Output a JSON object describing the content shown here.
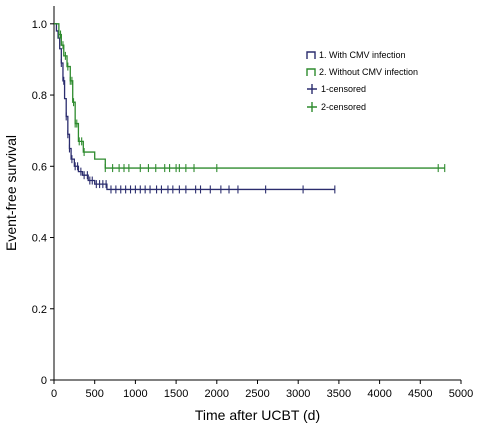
{
  "chart_data": {
    "type": "line",
    "subtype": "kaplan-meier",
    "xlabel": "Time after UCBT (d)",
    "ylabel": "Event-free survival",
    "xlim": [
      0,
      5000
    ],
    "ylim": [
      0,
      1.05
    ],
    "x_ticks": [
      "0",
      "500",
      "1000",
      "1500",
      "2000",
      "2500",
      "3000",
      "3500",
      "4000",
      "4500",
      "5000"
    ],
    "y_ticks": [
      "0",
      "0.2",
      "0.4",
      "0.6",
      "0.8",
      "1.0"
    ],
    "legend_position": "top-right",
    "series": [
      {
        "name": "1. With CMV infection",
        "censor_name": "1-censored",
        "color": "#2b2d6e",
        "steps": [
          [
            0,
            1.0
          ],
          [
            30,
            0.98
          ],
          [
            50,
            0.96
          ],
          [
            70,
            0.93
          ],
          [
            90,
            0.89
          ],
          [
            110,
            0.84
          ],
          [
            130,
            0.79
          ],
          [
            150,
            0.74
          ],
          [
            170,
            0.69
          ],
          [
            190,
            0.65
          ],
          [
            210,
            0.62
          ],
          [
            250,
            0.6
          ],
          [
            300,
            0.585
          ],
          [
            350,
            0.575
          ],
          [
            420,
            0.56
          ],
          [
            500,
            0.55
          ],
          [
            650,
            0.535
          ],
          [
            3450,
            0.535
          ]
        ],
        "censored": [
          90,
          120,
          150,
          170,
          190,
          220,
          260,
          290,
          330,
          370,
          410,
          440,
          470,
          520,
          560,
          600,
          640,
          700,
          760,
          820,
          880,
          940,
          1000,
          1060,
          1120,
          1180,
          1260,
          1320,
          1400,
          1460,
          1540,
          1620,
          1740,
          1800,
          1920,
          2050,
          2150,
          2260,
          2600,
          3060,
          3450
        ]
      },
      {
        "name": "2. Without CMV infection",
        "censor_name": "2-censored",
        "color": "#2e8b2e",
        "steps": [
          [
            0,
            1.0
          ],
          [
            60,
            0.97
          ],
          [
            90,
            0.94
          ],
          [
            120,
            0.91
          ],
          [
            160,
            0.88
          ],
          [
            200,
            0.84
          ],
          [
            230,
            0.78
          ],
          [
            260,
            0.72
          ],
          [
            300,
            0.67
          ],
          [
            360,
            0.64
          ],
          [
            500,
            0.62
          ],
          [
            630,
            0.595
          ],
          [
            4800,
            0.595
          ]
        ],
        "censored": [
          60,
          80,
          110,
          140,
          170,
          200,
          220,
          240,
          260,
          280,
          310,
          340,
          370,
          630,
          720,
          800,
          860,
          920,
          1060,
          1160,
          1250,
          1360,
          1420,
          1500,
          1540,
          1620,
          1720,
          2000,
          4720,
          4800
        ]
      }
    ]
  }
}
